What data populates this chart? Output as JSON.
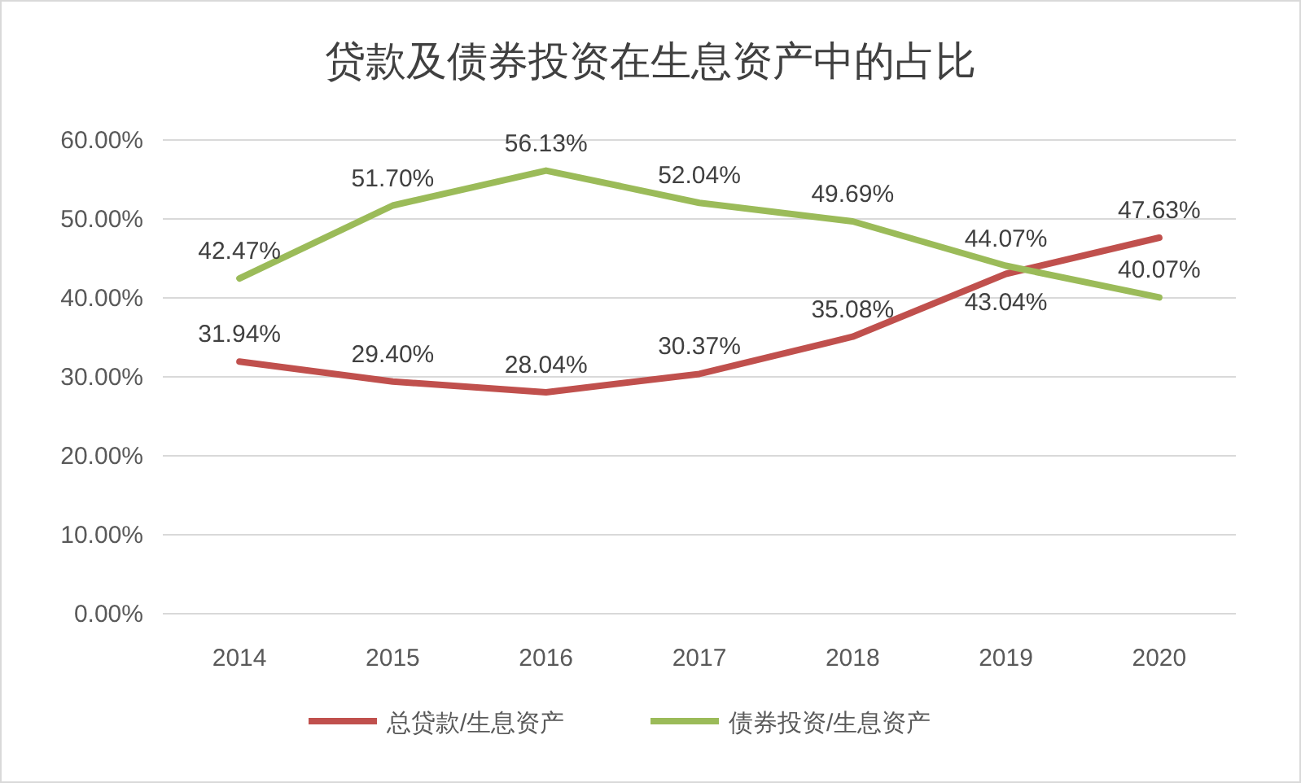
{
  "chart_data": {
    "type": "line",
    "title": "贷款及债券投资在生息资产中的占比",
    "categories": [
      "2014",
      "2015",
      "2016",
      "2017",
      "2018",
      "2019",
      "2020"
    ],
    "series": [
      {
        "name": "总贷款/生息资产",
        "color": "#c0504d",
        "values": [
          31.94,
          29.4,
          28.04,
          30.37,
          35.08,
          43.04,
          47.63
        ],
        "value_labels": [
          "31.94%",
          "29.40%",
          "28.04%",
          "30.37%",
          "35.08%",
          "43.04%",
          "47.63%"
        ]
      },
      {
        "name": "债券投资/生息资产",
        "color": "#9bbb59",
        "values": [
          42.47,
          51.7,
          56.13,
          52.04,
          49.69,
          44.07,
          40.07
        ],
        "value_labels": [
          "42.47%",
          "51.70%",
          "56.13%",
          "52.04%",
          "49.69%",
          "44.07%",
          "40.07%"
        ]
      }
    ],
    "ylim": [
      0,
      60
    ],
    "yticks": [
      {
        "value": 0,
        "label": "0.00%"
      },
      {
        "value": 10,
        "label": "10.00%"
      },
      {
        "value": 20,
        "label": "20.00%"
      },
      {
        "value": 30,
        "label": "30.00%"
      },
      {
        "value": 40,
        "label": "40.00%"
      },
      {
        "value": 50,
        "label": "50.00%"
      },
      {
        "value": 60,
        "label": "60.00%"
      }
    ],
    "grid": "y",
    "legend": "bottom",
    "marker": "none",
    "line_style": "solid"
  }
}
